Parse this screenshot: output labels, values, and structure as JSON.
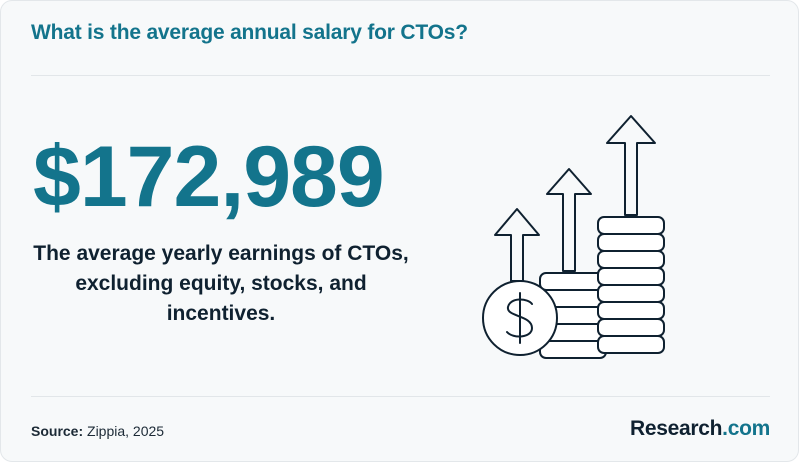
{
  "title": "What is the average annual salary for CTOs?",
  "headline_value": "$172,989",
  "caption": "The average yearly earnings of CTOs, excluding equity, stocks, and incentives.",
  "footer": {
    "source_label": "Source:",
    "source_text": "Zippia, 2025"
  },
  "brand": {
    "name": "Research",
    "suffix": ".com"
  },
  "colors": {
    "accent": "#13748c",
    "dark_text": "#0f2130",
    "background": "#f7f9fa"
  },
  "illustration": {
    "icons": [
      "dollar-coin-icon",
      "coin-stack-icon",
      "arrow-up-icon"
    ]
  }
}
